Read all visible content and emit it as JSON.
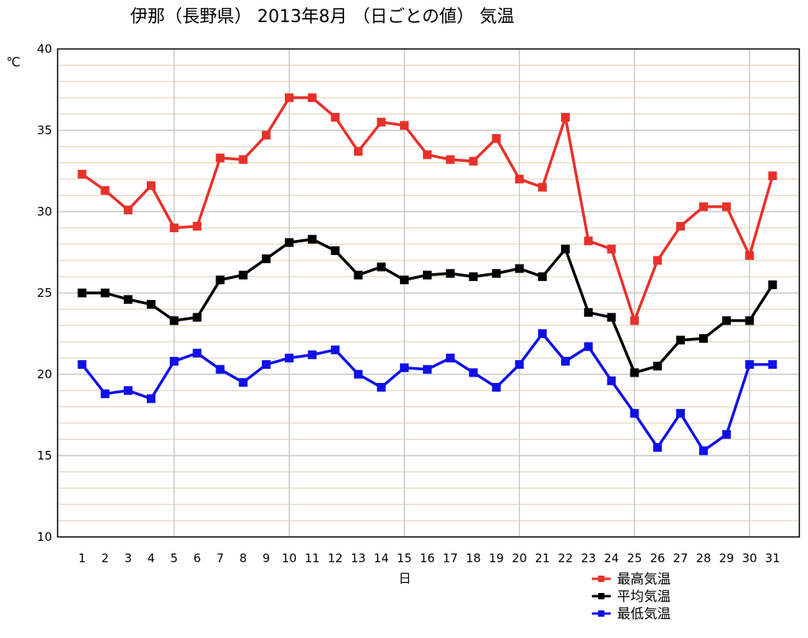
{
  "chart_data": {
    "type": "line",
    "title": "伊那（長野県） 2013年8月 （日ごとの値） 気温",
    "xlabel": "日",
    "ylabel": "℃",
    "ylim": [
      10,
      40
    ],
    "yticks": [
      10,
      15,
      20,
      25,
      30,
      35,
      40
    ],
    "categories": [
      "1",
      "2",
      "3",
      "4",
      "5",
      "6",
      "7",
      "8",
      "9",
      "10",
      "11",
      "12",
      "13",
      "14",
      "15",
      "16",
      "17",
      "18",
      "19",
      "20",
      "21",
      "22",
      "23",
      "24",
      "25",
      "26",
      "27",
      "28",
      "29",
      "30",
      "31"
    ],
    "grid": true,
    "legend_position": "bottom-right",
    "series": [
      {
        "name": "最高気温",
        "color": "#e8302a",
        "values": [
          32.3,
          31.3,
          30.1,
          31.6,
          29.0,
          29.1,
          33.3,
          33.2,
          34.7,
          37.0,
          37.0,
          35.8,
          33.7,
          35.5,
          35.3,
          33.5,
          33.2,
          33.1,
          34.5,
          32.0,
          31.5,
          35.8,
          28.2,
          27.7,
          23.3,
          27.0,
          29.1,
          30.3,
          30.3,
          27.3,
          32.2
        ]
      },
      {
        "name": "平均気温",
        "color": "#000000",
        "values": [
          25.0,
          25.0,
          24.6,
          24.3,
          23.3,
          23.5,
          25.8,
          26.1,
          27.1,
          28.1,
          28.3,
          27.6,
          26.1,
          26.6,
          25.8,
          26.1,
          26.2,
          26.0,
          26.2,
          26.5,
          26.0,
          27.7,
          23.8,
          23.5,
          20.1,
          20.5,
          22.1,
          22.2,
          23.3,
          23.3,
          25.5
        ]
      },
      {
        "name": "最低気温",
        "color": "#1010e8",
        "values": [
          20.6,
          18.8,
          19.0,
          18.5,
          20.8,
          21.3,
          20.3,
          19.5,
          20.6,
          21.0,
          21.2,
          21.5,
          20.0,
          19.2,
          20.4,
          20.3,
          21.0,
          20.1,
          19.2,
          20.6,
          22.5,
          20.8,
          21.7,
          19.6,
          17.6,
          15.5,
          17.6,
          15.3,
          16.3,
          20.6,
          20.6
        ]
      }
    ]
  }
}
